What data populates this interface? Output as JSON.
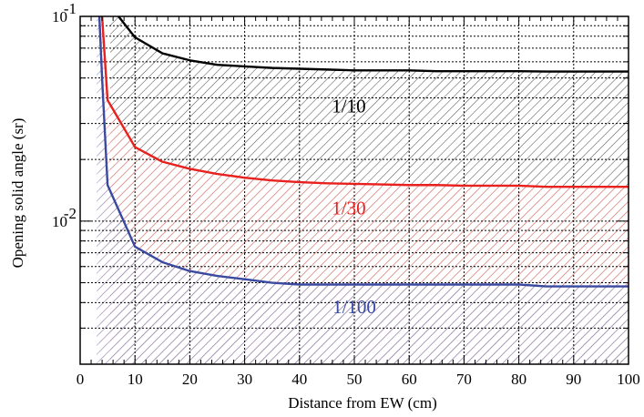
{
  "chart_data": {
    "type": "line",
    "xlabel": "Distance from EW (cm)",
    "ylabel": "Opening solid angle (sr)",
    "xlim": [
      0,
      100
    ],
    "ylim": [
      0.002,
      0.1
    ],
    "yscale": "log",
    "grid": true,
    "x_ticks": [
      "0",
      "10",
      "20",
      "30",
      "40",
      "50",
      "60",
      "70",
      "80",
      "90",
      "100"
    ],
    "y_tick_labels": [
      {
        "value": 0.01,
        "base": "10",
        "exp": "-2"
      },
      {
        "value": 0.1,
        "base": "10",
        "exp": "-1"
      }
    ],
    "series": [
      {
        "name": "1/10",
        "color": "#000000",
        "fill": "#555555",
        "x": [
          5.5,
          7,
          10,
          15,
          20,
          25,
          30,
          35,
          40,
          45,
          50,
          55,
          60,
          65,
          70,
          75,
          80,
          85,
          90,
          95,
          100
        ],
        "y": [
          0.15,
          0.1,
          0.079,
          0.066,
          0.061,
          0.058,
          0.057,
          0.056,
          0.0555,
          0.055,
          0.0545,
          0.0545,
          0.0545,
          0.054,
          0.054,
          0.054,
          0.054,
          0.0538,
          0.0538,
          0.0538,
          0.0538
        ]
      },
      {
        "name": "1/30",
        "color": "#e8201e",
        "fill": "#e8201e",
        "x": [
          3.5,
          4,
          5,
          10,
          15,
          20,
          25,
          30,
          35,
          40,
          45,
          50,
          55,
          60,
          65,
          70,
          75,
          80,
          85,
          90,
          95,
          100
        ],
        "y": [
          0.15,
          0.1,
          0.039,
          0.023,
          0.0195,
          0.018,
          0.017,
          0.0163,
          0.0158,
          0.0155,
          0.0153,
          0.0152,
          0.0151,
          0.015,
          0.015,
          0.0149,
          0.0149,
          0.0149,
          0.0147,
          0.0147,
          0.0147,
          0.0147
        ]
      },
      {
        "name": "1/100",
        "color": "#3a4aa0",
        "fill": "#3a4aa0",
        "x": [
          3,
          3.5,
          4,
          5,
          10,
          15,
          20,
          25,
          30,
          35,
          40,
          45,
          50,
          55,
          60,
          65,
          70,
          75,
          80,
          85,
          90,
          95,
          100
        ],
        "y": [
          0.15,
          0.1,
          0.05,
          0.015,
          0.0075,
          0.0063,
          0.0057,
          0.0054,
          0.0052,
          0.005,
          0.0049,
          0.0049,
          0.0049,
          0.0049,
          0.0049,
          0.0049,
          0.0049,
          0.0049,
          0.0049,
          0.0048,
          0.0048,
          0.0048,
          0.0048
        ]
      }
    ],
    "annotations": [
      {
        "text": "1/10",
        "x": 49,
        "y": 0.034,
        "color": "#000000"
      },
      {
        "text": "1/30",
        "x": 49,
        "y": 0.0108,
        "color": "#e8201e"
      },
      {
        "text": "1/100",
        "x": 50,
        "y": 0.00355,
        "color": "#3a4aa0"
      }
    ]
  }
}
